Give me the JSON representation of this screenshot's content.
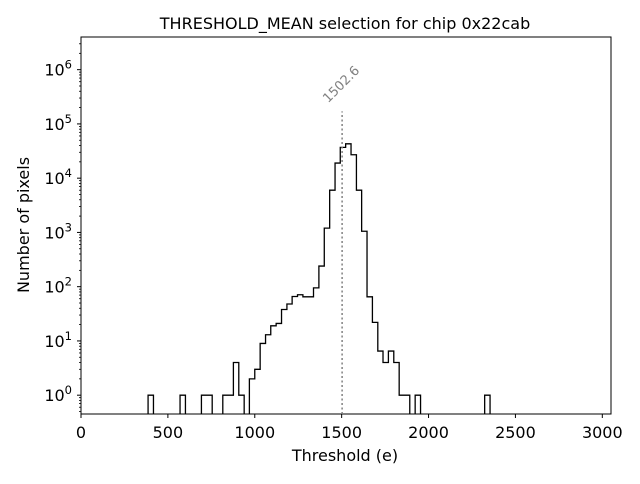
{
  "chart_data": {
    "type": "histogram",
    "title": "THRESHOLD_MEAN selection for chip 0x22cab",
    "xlabel": "Threshold (e)",
    "ylabel": "Number of pixels",
    "xlim": [
      0,
      3050
    ],
    "ylim": [
      0.45,
      4000000
    ],
    "yscale": "log",
    "grid": false,
    "legend": null,
    "xticks": [
      0,
      500,
      1000,
      1500,
      2000,
      2500,
      3000
    ],
    "xtick_labels": [
      "0",
      "500",
      "1000",
      "1500",
      "2000",
      "2500",
      "3000"
    ],
    "yticks": [
      1,
      10,
      100,
      1000,
      10000,
      100000,
      1000000
    ],
    "ytick_labels": [
      {
        "base": "10",
        "exp": "0"
      },
      {
        "base": "10",
        "exp": "1"
      },
      {
        "base": "10",
        "exp": "2"
      },
      {
        "base": "10",
        "exp": "3"
      },
      {
        "base": "10",
        "exp": "4"
      },
      {
        "base": "10",
        "exp": "5"
      },
      {
        "base": "10",
        "exp": "6"
      }
    ],
    "bins": [
      {
        "x0": 386,
        "x1": 417,
        "count": 1
      },
      {
        "x0": 570,
        "x1": 601,
        "count": 1
      },
      {
        "x0": 693,
        "x1": 755,
        "count": 1
      },
      {
        "x0": 816,
        "x1": 877,
        "count": 1
      },
      {
        "x0": 877,
        "x1": 908,
        "count": 4
      },
      {
        "x0": 908,
        "x1": 939,
        "count": 1
      },
      {
        "x0": 969,
        "x1": 1000,
        "count": 2
      },
      {
        "x0": 1000,
        "x1": 1031,
        "count": 3
      },
      {
        "x0": 1031,
        "x1": 1062,
        "count": 9
      },
      {
        "x0": 1062,
        "x1": 1092,
        "count": 13
      },
      {
        "x0": 1092,
        "x1": 1123,
        "count": 19
      },
      {
        "x0": 1123,
        "x1": 1154,
        "count": 21
      },
      {
        "x0": 1154,
        "x1": 1185,
        "count": 38
      },
      {
        "x0": 1185,
        "x1": 1215,
        "count": 48
      },
      {
        "x0": 1215,
        "x1": 1246,
        "count": 66
      },
      {
        "x0": 1246,
        "x1": 1277,
        "count": 71
      },
      {
        "x0": 1277,
        "x1": 1308,
        "count": 65
      },
      {
        "x0": 1308,
        "x1": 1338,
        "count": 65
      },
      {
        "x0": 1338,
        "x1": 1369,
        "count": 95
      },
      {
        "x0": 1369,
        "x1": 1400,
        "count": 240
      },
      {
        "x0": 1400,
        "x1": 1431,
        "count": 1200
      },
      {
        "x0": 1431,
        "x1": 1462,
        "count": 6000
      },
      {
        "x0": 1462,
        "x1": 1492,
        "count": 19000
      },
      {
        "x0": 1492,
        "x1": 1523,
        "count": 37000
      },
      {
        "x0": 1523,
        "x1": 1554,
        "count": 43000
      },
      {
        "x0": 1554,
        "x1": 1585,
        "count": 27000
      },
      {
        "x0": 1585,
        "x1": 1615,
        "count": 6000
      },
      {
        "x0": 1615,
        "x1": 1646,
        "count": 1050
      },
      {
        "x0": 1646,
        "x1": 1677,
        "count": 65
      },
      {
        "x0": 1677,
        "x1": 1708,
        "count": 22
      },
      {
        "x0": 1708,
        "x1": 1738,
        "count": 6.5
      },
      {
        "x0": 1738,
        "x1": 1769,
        "count": 4
      },
      {
        "x0": 1769,
        "x1": 1800,
        "count": 6.5
      },
      {
        "x0": 1800,
        "x1": 1831,
        "count": 4
      },
      {
        "x0": 1831,
        "x1": 1892,
        "count": 1
      },
      {
        "x0": 1923,
        "x1": 1954,
        "count": 1
      },
      {
        "x0": 2323,
        "x1": 2354,
        "count": 1
      }
    ],
    "annotation": {
      "x": 1502.6,
      "label": "1502.6",
      "line_top_y": 170000,
      "style": "dotted",
      "color": "#808080"
    }
  }
}
